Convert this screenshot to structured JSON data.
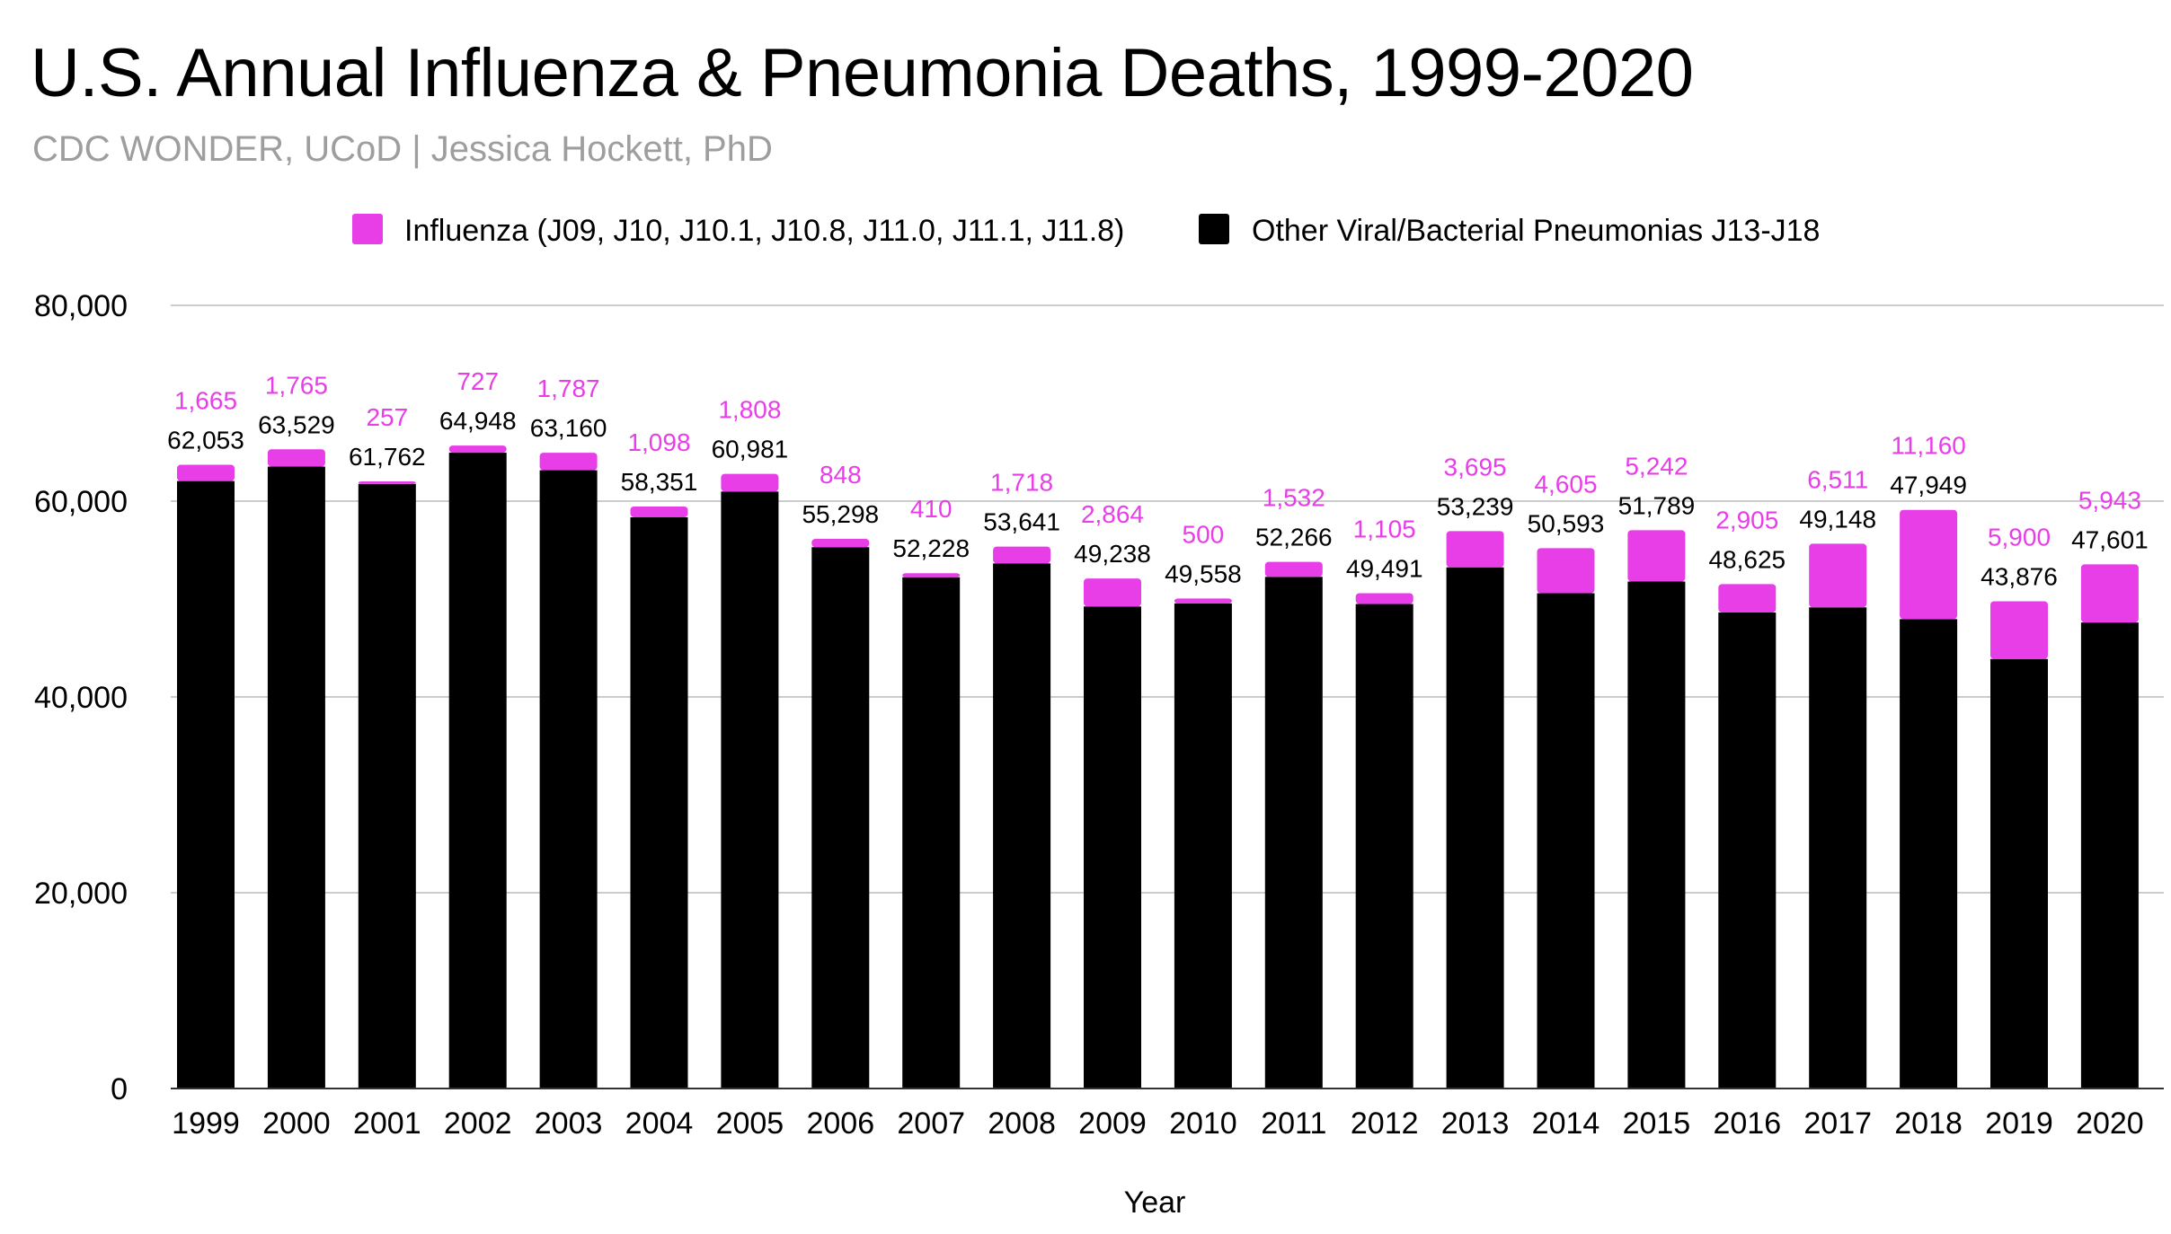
{
  "chart_data": {
    "type": "bar",
    "stacked": true,
    "title": "U.S. Annual Influenza & Pneumonia Deaths, 1999-2020",
    "subtitle": "CDC WONDER, UCoD | Jessica Hockett, PhD",
    "xlabel": "Year",
    "ylabel": "",
    "ylim": [
      0,
      80000
    ],
    "yticks": [
      0,
      20000,
      40000,
      60000,
      80000
    ],
    "ytick_labels": [
      "0",
      "20,000",
      "40,000",
      "60,000",
      "80,000"
    ],
    "grid": true,
    "legend_position": "top",
    "categories": [
      "1999",
      "2000",
      "2001",
      "2002",
      "2003",
      "2004",
      "2005",
      "2006",
      "2007",
      "2008",
      "2009",
      "2010",
      "2011",
      "2012",
      "2013",
      "2014",
      "2015",
      "2016",
      "2017",
      "2018",
      "2019",
      "2020"
    ],
    "series": [
      {
        "name": "Other Viral/Bacterial Pneumonias J13-J18",
        "color": "#000000",
        "values": [
          62053,
          63529,
          61762,
          64948,
          63160,
          58351,
          60981,
          55298,
          52228,
          53641,
          49238,
          49558,
          52266,
          49491,
          53239,
          50593,
          51789,
          48625,
          49148,
          47949,
          43876,
          47601
        ],
        "labels": [
          "62,053",
          "63,529",
          "61,762",
          "64,948",
          "63,160",
          "58,351",
          "60,981",
          "55,298",
          "52,228",
          "53,641",
          "49,238",
          "49,558",
          "52,266",
          "49,491",
          "53,239",
          "50,593",
          "51,789",
          "48,625",
          "49,148",
          "47,949",
          "43,876",
          "47,601"
        ]
      },
      {
        "name": "Influenza (J09, J10, J10.1, J10.8, J11.0, J11.1, J11.8)",
        "color": "#e83ee8",
        "values": [
          1665,
          1765,
          257,
          727,
          1787,
          1098,
          1808,
          848,
          410,
          1718,
          2864,
          500,
          1532,
          1105,
          3695,
          4605,
          5242,
          2905,
          6511,
          11160,
          5900,
          5943
        ],
        "labels": [
          "1,665",
          "1,765",
          "257",
          "727",
          "1,787",
          "1,098",
          "1,808",
          "848",
          "410",
          "1,718",
          "2,864",
          "500",
          "1,532",
          "1,105",
          "3,695",
          "4,605",
          "5,242",
          "2,905",
          "6,511",
          "11,160",
          "5,900",
          "5,943"
        ]
      }
    ]
  }
}
